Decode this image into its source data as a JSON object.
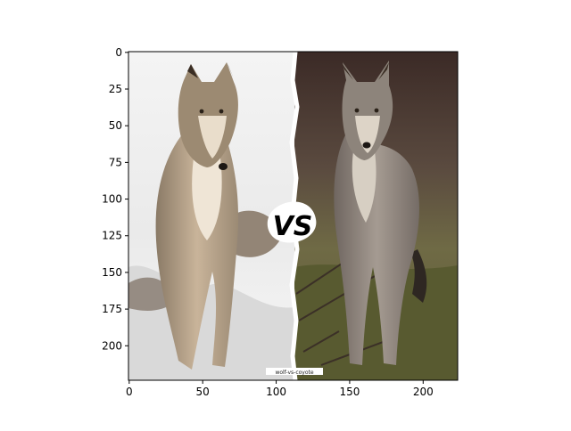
{
  "figure": {
    "background": "#ffffff",
    "axes": {
      "x_ticks": [
        "0",
        "50",
        "100",
        "150",
        "200"
      ],
      "y_ticks": [
        "0",
        "25",
        "50",
        "75",
        "100",
        "125",
        "150",
        "175",
        "200"
      ],
      "xlim": [
        -0.5,
        223.5
      ],
      "ylim": [
        223.5,
        -0.5
      ]
    },
    "image": {
      "left_panel": "gray wolf standing in snow",
      "right_panel": "coyote standing on grass",
      "badge_text": "VS",
      "badge_color": "#d0101c",
      "watermark_text": "wolf-vs-coyote"
    }
  }
}
